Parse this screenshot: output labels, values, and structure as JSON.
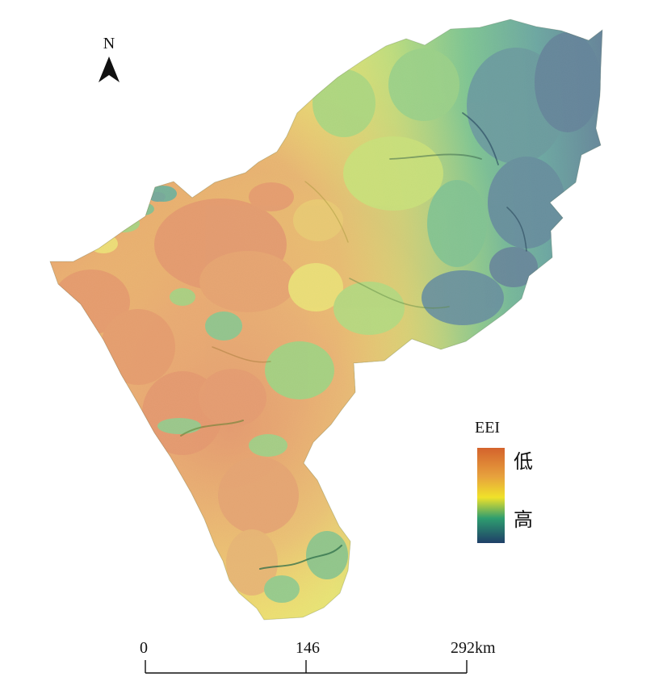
{
  "map": {
    "north_label": "N",
    "legend": {
      "title": "EEI",
      "low_label": "低",
      "high_label": "高",
      "ramp_colors": [
        "#d4632c",
        "#f0e22a",
        "#2e9d6f",
        "#1f3f68"
      ]
    },
    "scale_bar": {
      "labels": [
        "0",
        "146",
        "292km"
      ]
    },
    "colors": {
      "low": "#d4632c",
      "orange": "#e58a2f",
      "yellow": "#f0e22a",
      "green": "#84c24a",
      "teal": "#2e9d6f",
      "high": "#1f3f68"
    }
  }
}
